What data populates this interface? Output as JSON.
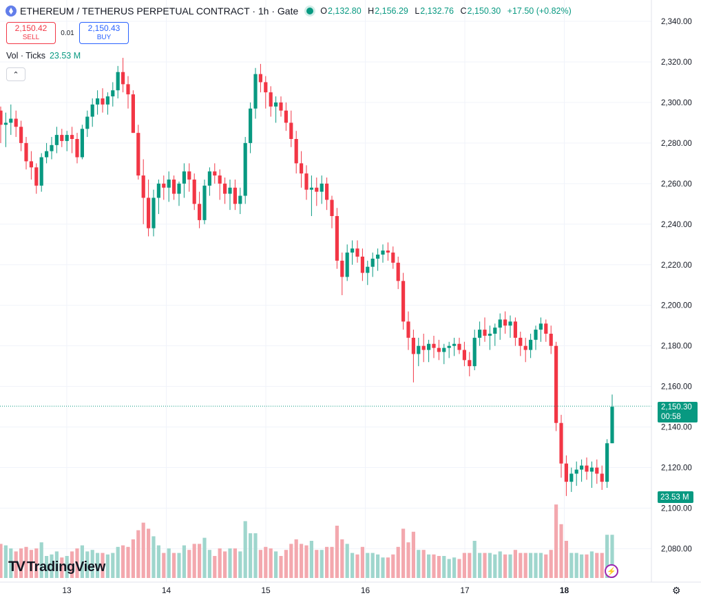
{
  "header": {
    "title": "ETHEREUM / TETHERUS PERPETUAL CONTRACT · 1h · Gate",
    "ohlc": {
      "o_key": "O",
      "o": "2,132.80",
      "h_key": "H",
      "h": "2,156.29",
      "l_key": "L",
      "l": "2,132.76",
      "c_key": "C",
      "c": "2,150.30",
      "change": "+17.50 (+0.82%)"
    }
  },
  "trade": {
    "sell_price": "2,150.42",
    "sell_label": "SELL",
    "spread": "0.01",
    "buy_price": "2,150.43",
    "buy_label": "BUY"
  },
  "volume_legend": {
    "label": "Vol · Ticks",
    "value": "23.53 M"
  },
  "price_tag": {
    "price": "2,150.30",
    "countdown": "00:58"
  },
  "volume_tag": "23.53 M",
  "brand": {
    "mark": "TV",
    "name": "TradingView"
  },
  "colors": {
    "up": "#089981",
    "down": "#f23645",
    "vol_up": "#9fd6cd",
    "vol_down": "#f3a8ae",
    "grid": "#f0f3fa",
    "accent": "#2962ff"
  },
  "chart_data": {
    "type": "candlestick",
    "symbol": "ETHEREUM / TETHERUS PERPETUAL CONTRACT",
    "interval": "1h",
    "exchange": "Gate",
    "y_ticks": [
      "2,340.00",
      "2,320.00",
      "2,300.00",
      "2,280.00",
      "2,260.00",
      "2,240.00",
      "2,220.00",
      "2,200.00",
      "2,180.00",
      "2,160.00",
      "2,140.00",
      "2,120.00",
      "2,100.00",
      "2,080.00"
    ],
    "x_ticks": [
      "13",
      "14",
      "15",
      "16",
      "17",
      "18"
    ],
    "ylim": [
      2070,
      2345
    ],
    "last_price": 2150.3,
    "grid": true,
    "candles_ohlc_approx": [
      [
        2296,
        2298,
        2280,
        2289
      ],
      [
        2289,
        2295,
        2278,
        2290
      ],
      [
        2290,
        2299,
        2284,
        2292
      ],
      [
        2292,
        2296,
        2283,
        2288
      ],
      [
        2288,
        2291,
        2276,
        2280
      ],
      [
        2280,
        2283,
        2267,
        2271
      ],
      [
        2271,
        2276,
        2262,
        2268
      ],
      [
        2268,
        2270,
        2255,
        2259
      ],
      [
        2259,
        2275,
        2256,
        2273
      ],
      [
        2273,
        2280,
        2270,
        2276
      ],
      [
        2276,
        2283,
        2272,
        2279
      ],
      [
        2279,
        2288,
        2275,
        2284
      ],
      [
        2284,
        2287,
        2278,
        2281
      ],
      [
        2281,
        2286,
        2276,
        2284
      ],
      [
        2284,
        2288,
        2275,
        2282
      ],
      [
        2282,
        2285,
        2270,
        2273
      ],
      [
        2273,
        2289,
        2272,
        2287
      ],
      [
        2287,
        2296,
        2283,
        2293
      ],
      [
        2293,
        2302,
        2288,
        2299
      ],
      [
        2299,
        2306,
        2294,
        2302
      ],
      [
        2302,
        2307,
        2295,
        2299
      ],
      [
        2299,
        2305,
        2294,
        2303
      ],
      [
        2303,
        2310,
        2298,
        2306
      ],
      [
        2306,
        2318,
        2302,
        2315
      ],
      [
        2315,
        2322,
        2305,
        2309
      ],
      [
        2309,
        2313,
        2297,
        2304
      ],
      [
        2304,
        2306,
        2285,
        2285
      ],
      [
        2285,
        2289,
        2262,
        2264
      ],
      [
        2264,
        2272,
        2240,
        2253
      ],
      [
        2253,
        2262,
        2234,
        2238
      ],
      [
        2238,
        2257,
        2234,
        2253
      ],
      [
        2253,
        2262,
        2245,
        2260
      ],
      [
        2260,
        2264,
        2252,
        2258
      ],
      [
        2258,
        2266,
        2251,
        2262
      ],
      [
        2262,
        2264,
        2252,
        2255
      ],
      [
        2255,
        2261,
        2249,
        2260
      ],
      [
        2260,
        2270,
        2253,
        2266
      ],
      [
        2266,
        2270,
        2256,
        2262
      ],
      [
        2262,
        2265,
        2247,
        2250
      ],
      [
        2250,
        2256,
        2238,
        2242
      ],
      [
        2242,
        2262,
        2240,
        2259
      ],
      [
        2259,
        2268,
        2254,
        2266
      ],
      [
        2266,
        2270,
        2260,
        2264
      ],
      [
        2264,
        2267,
        2252,
        2260
      ],
      [
        2260,
        2263,
        2250,
        2255
      ],
      [
        2255,
        2262,
        2247,
        2258
      ],
      [
        2258,
        2262,
        2247,
        2250
      ],
      [
        2250,
        2258,
        2245,
        2254
      ],
      [
        2254,
        2283,
        2250,
        2280
      ],
      [
        2280,
        2300,
        2275,
        2297
      ],
      [
        2297,
        2317,
        2292,
        2314
      ],
      [
        2314,
        2319,
        2305,
        2310
      ],
      [
        2310,
        2313,
        2297,
        2305
      ],
      [
        2305,
        2308,
        2293,
        2298
      ],
      [
        2298,
        2303,
        2290,
        2300
      ],
      [
        2300,
        2303,
        2293,
        2296
      ],
      [
        2296,
        2300,
        2286,
        2290
      ],
      [
        2290,
        2296,
        2278,
        2282
      ],
      [
        2282,
        2286,
        2265,
        2270
      ],
      [
        2270,
        2276,
        2258,
        2265
      ],
      [
        2265,
        2269,
        2252,
        2257
      ],
      [
        2257,
        2264,
        2244,
        2258
      ],
      [
        2258,
        2263,
        2249,
        2256
      ],
      [
        2256,
        2264,
        2250,
        2260
      ],
      [
        2260,
        2263,
        2247,
        2252
      ],
      [
        2252,
        2254,
        2238,
        2244
      ],
      [
        2244,
        2248,
        2218,
        2222
      ],
      [
        2222,
        2226,
        2205,
        2214
      ],
      [
        2214,
        2230,
        2212,
        2226
      ],
      [
        2226,
        2232,
        2220,
        2228
      ],
      [
        2228,
        2232,
        2221,
        2224
      ],
      [
        2224,
        2228,
        2212,
        2216
      ],
      [
        2216,
        2222,
        2210,
        2219
      ],
      [
        2219,
        2226,
        2214,
        2223
      ],
      [
        2223,
        2228,
        2217,
        2225
      ],
      [
        2225,
        2230,
        2221,
        2227
      ],
      [
        2227,
        2231,
        2222,
        2226
      ],
      [
        2226,
        2229,
        2218,
        2221
      ],
      [
        2221,
        2224,
        2208,
        2212
      ],
      [
        2212,
        2216,
        2188,
        2192
      ],
      [
        2192,
        2197,
        2178,
        2184
      ],
      [
        2184,
        2188,
        2162,
        2176
      ],
      [
        2176,
        2184,
        2170,
        2180
      ],
      [
        2180,
        2186,
        2172,
        2178
      ],
      [
        2178,
        2183,
        2172,
        2181
      ],
      [
        2181,
        2185,
        2174,
        2179
      ],
      [
        2179,
        2183,
        2173,
        2177
      ],
      [
        2177,
        2181,
        2171,
        2179
      ],
      [
        2179,
        2182,
        2174,
        2180
      ],
      [
        2180,
        2184,
        2175,
        2181
      ],
      [
        2181,
        2184,
        2176,
        2178
      ],
      [
        2178,
        2182,
        2170,
        2173
      ],
      [
        2173,
        2177,
        2165,
        2170
      ],
      [
        2170,
        2188,
        2168,
        2184
      ],
      [
        2184,
        2192,
        2180,
        2188
      ],
      [
        2188,
        2194,
        2182,
        2185
      ],
      [
        2185,
        2190,
        2178,
        2186
      ],
      [
        2186,
        2191,
        2180,
        2189
      ],
      [
        2189,
        2196,
        2183,
        2193
      ],
      [
        2193,
        2197,
        2186,
        2190
      ],
      [
        2190,
        2195,
        2184,
        2192
      ],
      [
        2192,
        2194,
        2180,
        2184
      ],
      [
        2184,
        2187,
        2175,
        2180
      ],
      [
        2180,
        2184,
        2172,
        2178
      ],
      [
        2178,
        2186,
        2174,
        2183
      ],
      [
        2183,
        2190,
        2178,
        2188
      ],
      [
        2188,
        2194,
        2182,
        2191
      ],
      [
        2191,
        2193,
        2182,
        2186
      ],
      [
        2186,
        2190,
        2176,
        2180
      ],
      [
        2180,
        2182,
        2138,
        2142
      ],
      [
        2142,
        2146,
        2115,
        2122
      ],
      [
        2122,
        2126,
        2106,
        2113
      ],
      [
        2113,
        2120,
        2108,
        2117
      ],
      [
        2117,
        2123,
        2111,
        2119
      ],
      [
        2119,
        2124,
        2113,
        2121
      ],
      [
        2121,
        2125,
        2114,
        2118
      ],
      [
        2118,
        2123,
        2110,
        2120
      ],
      [
        2120,
        2124,
        2112,
        2117
      ],
      [
        2117,
        2121,
        2109,
        2113
      ],
      [
        2113,
        2134,
        2110,
        2132
      ],
      [
        2132,
        2156,
        2132,
        2150
      ]
    ]
  }
}
